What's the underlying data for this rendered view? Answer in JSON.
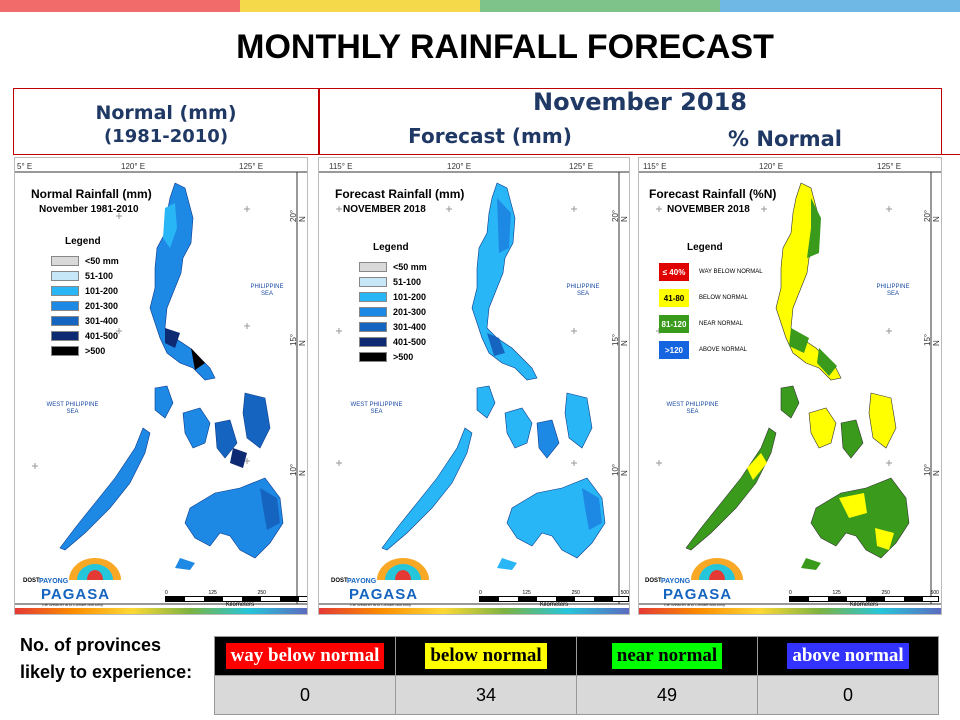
{
  "colors": {
    "bar1": "#f26b6b",
    "bar2": "#f5d94a",
    "bar3": "#7ec48a",
    "bar4": "#6fb8e6"
  },
  "title": "MONTHLY RAINFALL FORECAST",
  "headers": {
    "normal_line1": "Normal (mm)",
    "normal_line2": "(1981-2010)",
    "month": "November 2018",
    "forecast": "Forecast (mm)",
    "percent": "% Normal"
  },
  "panels": [
    {
      "map_title": "Normal Rainfall (mm)",
      "map_subtitle": "November 1981-2010",
      "coords_top": [
        "5° E",
        "120° E",
        "125° E"
      ],
      "legend": {
        "title": "Legend",
        "items": [
          {
            "label": "<50 mm",
            "color": "#d9d9d9"
          },
          {
            "label": "51-100",
            "color": "#c6e7f7"
          },
          {
            "label": "101-200",
            "color": "#29b6f6"
          },
          {
            "label": "201-300",
            "color": "#1e88e5"
          },
          {
            "label": "301-400",
            "color": "#1565c0"
          },
          {
            "label": "401-500",
            "color": "#0d2a73"
          },
          {
            "label": ">500",
            "color": "#000000"
          }
        ]
      }
    },
    {
      "map_title": "Forecast Rainfall (mm)",
      "map_subtitle": "NOVEMBER 2018",
      "coords_top": [
        "115° E",
        "120° E",
        "125° E"
      ],
      "legend": {
        "title": "Legend",
        "items": [
          {
            "label": "<50 mm",
            "color": "#d9d9d9"
          },
          {
            "label": "51-100",
            "color": "#c6e7f7"
          },
          {
            "label": "101-200",
            "color": "#29b6f6"
          },
          {
            "label": "201-300",
            "color": "#1e88e5"
          },
          {
            "label": "301-400",
            "color": "#1565c0"
          },
          {
            "label": "401-500",
            "color": "#0d2a73"
          },
          {
            "label": ">500",
            "color": "#000000"
          }
        ]
      }
    },
    {
      "map_title": "Forecast Rainfall (%N)",
      "map_subtitle": "NOVEMBER 2018",
      "coords_top": [
        "115° E",
        "120° E",
        "125° E"
      ],
      "legend": {
        "title": "Legend",
        "items": [
          {
            "range": "≤ 40%",
            "label": "WAY BELOW NORMAL",
            "color": "#e00000",
            "text_color": "#ffffff"
          },
          {
            "range": "41-80",
            "label": "BELOW NORMAL",
            "color": "#ffff00",
            "text_color": "#000000"
          },
          {
            "range": "81-120",
            "label": "NEAR NORMAL",
            "color": "#3a9a1c",
            "text_color": "#ffffff"
          },
          {
            "range": ">120",
            "label": "ABOVE NORMAL",
            "color": "#1565e0",
            "text_color": "#ffffff"
          }
        ]
      }
    }
  ],
  "map_labels": {
    "west_sea": "WEST PHILIPPINE SEA",
    "phil_sea": "PHILIPPINE SEA",
    "lat_20": "20° N",
    "lat_15": "15° N",
    "lat_10": "10° N",
    "scale_ticks": [
      "0",
      "125",
      "250",
      "500"
    ],
    "scale_unit": "Kilometers",
    "logo_dost": "DOST",
    "logo_payong": "PAYONG",
    "logo_pagasa": "PAGASA",
    "logo_tagline": "The Weather and Climate Authority"
  },
  "bottom": {
    "label": "No. of provinces likely to experience:",
    "categories": [
      {
        "label": "way below normal",
        "bg": "#ff0000",
        "fg": "#ffffff",
        "count": "0"
      },
      {
        "label": "below normal",
        "bg": "#ffff00",
        "fg": "#000000",
        "count": "34"
      },
      {
        "label": "near normal",
        "bg": "#00ff00",
        "fg": "#000000",
        "count": "49"
      },
      {
        "label": "above normal",
        "bg": "#3333ff",
        "fg": "#ffffff",
        "count": "0"
      }
    ]
  }
}
